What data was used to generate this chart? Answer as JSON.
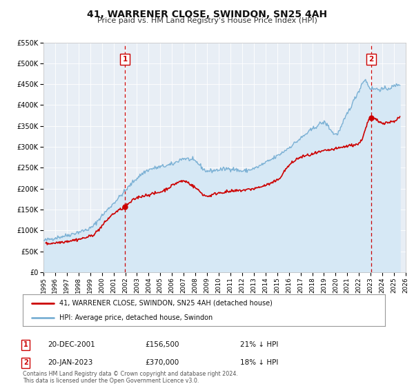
{
  "title": "41, WARRENER CLOSE, SWINDON, SN25 4AH",
  "subtitle": "Price paid vs. HM Land Registry's House Price Index (HPI)",
  "hpi_label": "HPI: Average price, detached house, Swindon",
  "price_label": "41, WARRENER CLOSE, SWINDON, SN25 4AH (detached house)",
  "price_color": "#cc0000",
  "hpi_color": "#7ab0d4",
  "hpi_fill_color": "#d6e8f5",
  "background_color": "#ffffff",
  "plot_bg_color": "#e8eef5",
  "annotation1": {
    "label": "1",
    "date": "20-DEC-2001",
    "price": "£156,500",
    "pct": "21% ↓ HPI",
    "x_year": 2001.97
  },
  "annotation2": {
    "label": "2",
    "date": "20-JAN-2023",
    "price": "£370,000",
    "pct": "18% ↓ HPI",
    "x_year": 2023.05
  },
  "footnote": "Contains HM Land Registry data © Crown copyright and database right 2024.\nThis data is licensed under the Open Government Licence v3.0.",
  "ylim": [
    0,
    550000
  ],
  "xlim": [
    1995,
    2026
  ],
  "yticks": [
    0,
    50000,
    100000,
    150000,
    200000,
    250000,
    300000,
    350000,
    400000,
    450000,
    500000,
    550000
  ],
  "ytick_labels": [
    "£0",
    "£50K",
    "£100K",
    "£150K",
    "£200K",
    "£250K",
    "£300K",
    "£350K",
    "£400K",
    "£450K",
    "£500K",
    "£550K"
  ],
  "xticks": [
    1995,
    1996,
    1997,
    1998,
    1999,
    2000,
    2001,
    2002,
    2003,
    2004,
    2005,
    2006,
    2007,
    2008,
    2009,
    2010,
    2011,
    2012,
    2013,
    2014,
    2015,
    2016,
    2017,
    2018,
    2019,
    2020,
    2021,
    2022,
    2023,
    2024,
    2025,
    2026
  ],
  "sale1_price": 156500,
  "sale2_price": 370000,
  "hpi_anchors_x": [
    1995,
    1996,
    1997,
    1998,
    1999,
    2000,
    2001,
    2002,
    2003,
    2004,
    2005,
    2006,
    2007,
    2008,
    2009,
    2010,
    2011,
    2012,
    2013,
    2014,
    2015,
    2016,
    2017,
    2018,
    2019,
    2020,
    2021,
    2022,
    2022.5,
    2023,
    2024,
    2025
  ],
  "hpi_anchors_y": [
    75000,
    82000,
    88000,
    96000,
    105000,
    135000,
    165000,
    195000,
    225000,
    245000,
    252000,
    258000,
    272000,
    265000,
    242000,
    245000,
    248000,
    242000,
    248000,
    262000,
    278000,
    298000,
    320000,
    342000,
    358000,
    330000,
    380000,
    435000,
    460000,
    440000,
    438000,
    445000
  ],
  "price_anchors_x": [
    1995.2,
    1997,
    1999,
    2001.0,
    2001.97,
    2003,
    2005,
    2007,
    2008,
    2009,
    2010,
    2011,
    2012,
    2013,
    2014,
    2015,
    2016,
    2017,
    2018,
    2019,
    2020,
    2021,
    2022,
    2023.05,
    2024,
    2025
  ],
  "price_anchors_y": [
    68000,
    74000,
    86000,
    140000,
    156500,
    178000,
    192000,
    218000,
    202000,
    182000,
    190000,
    193000,
    196000,
    200000,
    208000,
    220000,
    255000,
    275000,
    282000,
    290000,
    295000,
    302000,
    308000,
    370000,
    358000,
    362000
  ]
}
